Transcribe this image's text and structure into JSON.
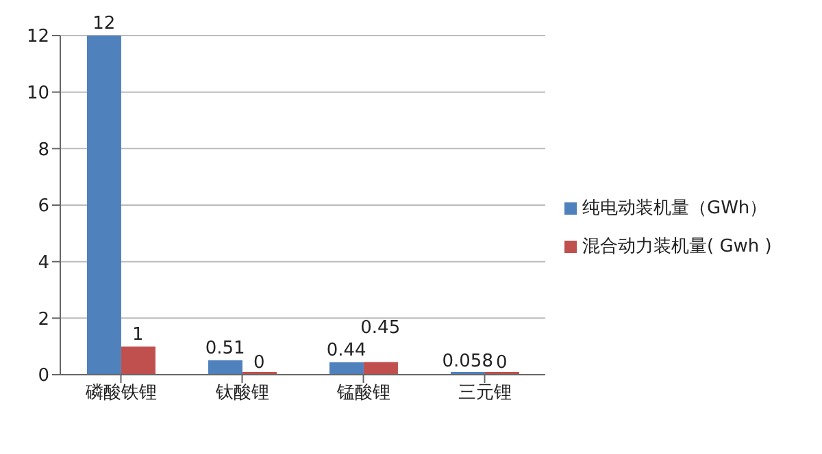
{
  "chart_data": {
    "type": "bar",
    "categories": [
      "磷酸铁锂",
      "钛酸锂",
      "锰酸锂",
      "三元锂"
    ],
    "series": [
      {
        "name": "纯电动装机量（GWh）",
        "color": "#4f81bd",
        "values": [
          12,
          0.51,
          0.44,
          0.058
        ]
      },
      {
        "name": "混合动力装机量( Gwh )",
        "color": "#c0504d",
        "values": [
          1,
          0,
          0.45,
          0
        ]
      }
    ],
    "ylim": [
      0,
      12
    ],
    "yticks": [
      0,
      2,
      4,
      6,
      8,
      10,
      12
    ],
    "grid": "y",
    "legend": "right",
    "data_labels": true
  }
}
